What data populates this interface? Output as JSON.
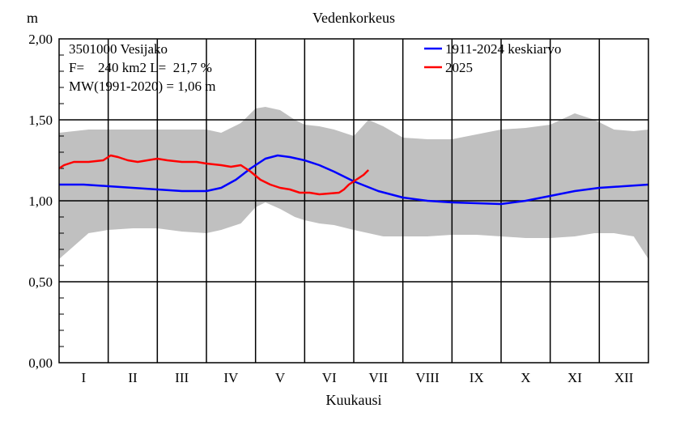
{
  "chart_data": {
    "type": "line",
    "title": "Vedenkorkeus",
    "ylabel": "m",
    "xlabel": "Kuukausi",
    "ylim": [
      0,
      2
    ],
    "y_ticks": [
      "0,00",
      "0,50",
      "1,00",
      "1,50",
      "2,00"
    ],
    "y_tick_values": [
      0,
      0.5,
      1.0,
      1.5,
      2.0
    ],
    "months": [
      "I",
      "II",
      "III",
      "IV",
      "V",
      "VI",
      "VII",
      "VIII",
      "IX",
      "X",
      "XI",
      "XII"
    ],
    "info_lines": [
      "3501000 Vesijako",
      "F=    240 km2 L=  21,7 %",
      "MW(1991-2020) = 1,06 m"
    ],
    "legend_position": "top-right",
    "grid": true,
    "colors": {
      "mean": "#0000ff",
      "current": "#ff0000",
      "band": "#c0c0c0",
      "grid": "#000000"
    },
    "x_unit": "month (0 = start of January, 12 = end of December)",
    "range_band": {
      "x": [
        0.0,
        0.3,
        0.6,
        1.0,
        1.5,
        2.0,
        2.5,
        3.0,
        3.3,
        3.7,
        4.0,
        4.2,
        4.5,
        4.8,
        5.0,
        5.3,
        5.6,
        6.0,
        6.3,
        6.6,
        7.0,
        7.5,
        8.0,
        8.5,
        9.0,
        9.5,
        10.0,
        10.5,
        10.9,
        11.3,
        11.7,
        12.0
      ],
      "upper": [
        1.42,
        1.43,
        1.44,
        1.44,
        1.44,
        1.44,
        1.44,
        1.44,
        1.42,
        1.48,
        1.57,
        1.58,
        1.56,
        1.5,
        1.47,
        1.46,
        1.44,
        1.4,
        1.5,
        1.46,
        1.39,
        1.38,
        1.38,
        1.41,
        1.44,
        1.45,
        1.47,
        1.54,
        1.5,
        1.44,
        1.43,
        1.44
      ],
      "lower": [
        0.64,
        0.72,
        0.8,
        0.82,
        0.83,
        0.83,
        0.81,
        0.8,
        0.82,
        0.86,
        0.96,
        0.99,
        0.95,
        0.9,
        0.88,
        0.86,
        0.85,
        0.82,
        0.8,
        0.78,
        0.78,
        0.78,
        0.79,
        0.79,
        0.78,
        0.77,
        0.77,
        0.78,
        0.8,
        0.8,
        0.78,
        0.64
      ]
    },
    "series": [
      {
        "name": "1911-2024 keskiarvo",
        "x": [
          0.0,
          0.5,
          1.0,
          1.5,
          2.0,
          2.5,
          3.0,
          3.3,
          3.6,
          3.9,
          4.2,
          4.45,
          4.7,
          5.0,
          5.3,
          5.6,
          6.0,
          6.5,
          7.0,
          7.5,
          8.0,
          8.5,
          9.0,
          9.5,
          10.0,
          10.5,
          11.0,
          11.5,
          12.0
        ],
        "y": [
          1.1,
          1.1,
          1.09,
          1.08,
          1.07,
          1.06,
          1.06,
          1.08,
          1.13,
          1.2,
          1.26,
          1.28,
          1.27,
          1.25,
          1.22,
          1.18,
          1.12,
          1.06,
          1.02,
          1.0,
          0.99,
          0.985,
          0.98,
          1.0,
          1.03,
          1.06,
          1.08,
          1.09,
          1.1
        ]
      },
      {
        "name": "2025",
        "x": [
          0.0,
          0.1,
          0.3,
          0.6,
          0.9,
          1.05,
          1.2,
          1.4,
          1.6,
          1.8,
          2.0,
          2.2,
          2.5,
          2.8,
          3.0,
          3.3,
          3.5,
          3.7,
          3.9,
          4.1,
          4.3,
          4.5,
          4.7,
          4.9,
          5.1,
          5.3,
          5.5,
          5.7,
          5.8,
          5.9,
          6.0,
          6.1,
          6.2,
          6.3
        ],
        "y": [
          1.2,
          1.22,
          1.24,
          1.24,
          1.25,
          1.28,
          1.27,
          1.25,
          1.24,
          1.25,
          1.26,
          1.25,
          1.24,
          1.24,
          1.23,
          1.22,
          1.21,
          1.22,
          1.18,
          1.13,
          1.1,
          1.08,
          1.07,
          1.05,
          1.05,
          1.04,
          1.045,
          1.05,
          1.07,
          1.1,
          1.12,
          1.14,
          1.16,
          1.19
        ]
      }
    ]
  }
}
